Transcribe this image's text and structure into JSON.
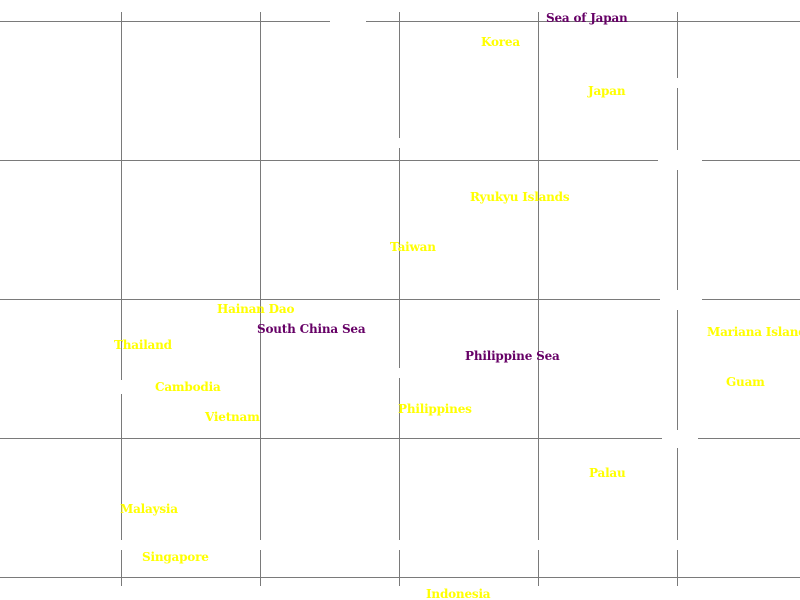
{
  "map": {
    "land_labels": {
      "korea": "Korea",
      "japan": "Japan",
      "ryukyu": "Ryukyu Islands",
      "taiwan": "Taiwan",
      "hainan": "Hainan Dao",
      "thailand": "Thailand",
      "cambodia": "Cambodia",
      "vietnam": "Vietnam",
      "philippines": "Philippines",
      "mariana": "Mariana Island",
      "guam": "Guam",
      "palau": "Palau",
      "malaysia": "Malaysia",
      "singapore": "Singapore",
      "indonesia": "Indonesia"
    },
    "sea_labels": {
      "sea_of_japan": "Sea of Japan",
      "south_china_sea": "South China Sea",
      "philippine_sea": "Philippine Sea"
    },
    "colors": {
      "land_label": "#ffff00",
      "sea_label": "#660066",
      "grid": "#7a7a7a",
      "background": "#ffffff"
    }
  }
}
